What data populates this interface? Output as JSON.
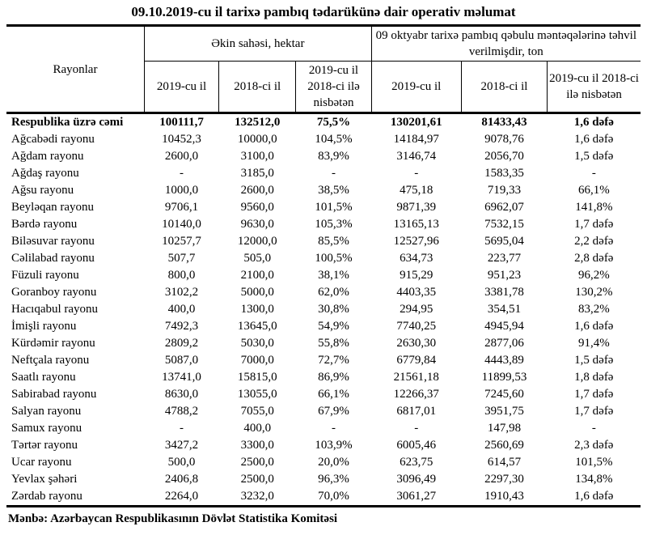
{
  "title": "09.10.2019-cu il tarixə pambıq tədarükünə dair operativ məlumat",
  "source": "Mənbə: Azərbaycan Respublikasının Dövlət Statistika Komitəsi",
  "table": {
    "row_header": "Rayonlar",
    "groups": [
      {
        "label": "Əkin sahəsi, hektar"
      },
      {
        "label": "09 oktyabr tarixə pambıq qəbulu məntəqələrinə təhvil verilmişdir, ton"
      }
    ],
    "subheaders": [
      "2019-cu il",
      "2018-ci il",
      "2019-cu il 2018-ci ilə nisbətən",
      "2019-cu il",
      "2018-ci il",
      "2019-cu il 2018-ci ilə nisbətən"
    ],
    "total_row": {
      "name": "Respublika üzrə cəmi",
      "values": [
        "100111,7",
        "132512,0",
        "75,5%",
        "130201,61",
        "81433,43",
        "1,6 dəfə"
      ]
    },
    "rows": [
      {
        "name": "Ağcabədi rayonu",
        "values": [
          "10452,3",
          "10000,0",
          "104,5%",
          "14184,97",
          "9078,76",
          "1,6 dəfə"
        ]
      },
      {
        "name": "Ağdam rayonu",
        "values": [
          "2600,0",
          "3100,0",
          "83,9%",
          "3146,74",
          "2056,70",
          "1,5 dəfə"
        ]
      },
      {
        "name": "Ağdaş rayonu",
        "values": [
          "-",
          "3185,0",
          "-",
          "-",
          "1583,35",
          "-"
        ]
      },
      {
        "name": "Ağsu rayonu",
        "values": [
          "1000,0",
          "2600,0",
          "38,5%",
          "475,18",
          "719,33",
          "66,1%"
        ]
      },
      {
        "name": "Beyləqan rayonu",
        "values": [
          "9706,1",
          "9560,0",
          "101,5%",
          "9871,39",
          "6962,07",
          "141,8%"
        ]
      },
      {
        "name": "Bərdə rayonu",
        "values": [
          "10140,0",
          "9630,0",
          "105,3%",
          "13165,13",
          "7532,15",
          "1,7 dəfə"
        ]
      },
      {
        "name": "Biləsuvar rayonu",
        "values": [
          "10257,7",
          "12000,0",
          "85,5%",
          "12527,96",
          "5695,04",
          "2,2 dəfə"
        ]
      },
      {
        "name": "Cəlilabad rayonu",
        "values": [
          "507,7",
          "505,0",
          "100,5%",
          "634,73",
          "223,77",
          "2,8 dəfə"
        ]
      },
      {
        "name": "Füzuli rayonu",
        "values": [
          "800,0",
          "2100,0",
          "38,1%",
          "915,29",
          "951,23",
          "96,2%"
        ]
      },
      {
        "name": "Goranboy rayonu",
        "values": [
          "3102,2",
          "5000,0",
          "62,0%",
          "4403,35",
          "3381,78",
          "130,2%"
        ]
      },
      {
        "name": "Hacıqabul rayonu",
        "values": [
          "400,0",
          "1300,0",
          "30,8%",
          "294,95",
          "354,51",
          "83,2%"
        ]
      },
      {
        "name": "İmişli rayonu",
        "values": [
          "7492,3",
          "13645,0",
          "54,9%",
          "7740,25",
          "4945,94",
          "1,6 dəfə"
        ]
      },
      {
        "name": "Kürdəmir rayonu",
        "values": [
          "2809,2",
          "5030,0",
          "55,8%",
          "2630,30",
          "2877,06",
          "91,4%"
        ]
      },
      {
        "name": "Neftçala rayonu",
        "values": [
          "5087,0",
          "7000,0",
          "72,7%",
          "6779,84",
          "4443,89",
          "1,5 dəfə"
        ]
      },
      {
        "name": "Saatlı rayonu",
        "values": [
          "13741,0",
          "15815,0",
          "86,9%",
          "21561,18",
          "11899,53",
          "1,8 dəfə"
        ]
      },
      {
        "name": "Sabirabad rayonu",
        "values": [
          "8630,0",
          "13055,0",
          "66,1%",
          "12266,37",
          "7245,60",
          "1,7 dəfə"
        ]
      },
      {
        "name": "Salyan rayonu",
        "values": [
          "4788,2",
          "7055,0",
          "67,9%",
          "6817,01",
          "3951,75",
          "1,7 dəfə"
        ]
      },
      {
        "name": "Samux rayonu",
        "values": [
          "-",
          "400,0",
          "-",
          "-",
          "147,98",
          "-"
        ]
      },
      {
        "name": "Tərtər rayonu",
        "values": [
          "3427,2",
          "3300,0",
          "103,9%",
          "6005,46",
          "2560,69",
          "2,3 dəfə"
        ]
      },
      {
        "name": "Ucar rayonu",
        "values": [
          "500,0",
          "2500,0",
          "20,0%",
          "623,75",
          "614,57",
          "101,5%"
        ]
      },
      {
        "name": "Yevlax şəhəri",
        "values": [
          "2406,8",
          "2500,0",
          "96,3%",
          "3096,49",
          "2297,30",
          "134,8%"
        ]
      },
      {
        "name": "Zərdab rayonu",
        "values": [
          "2264,0",
          "3232,0",
          "70,0%",
          "3061,27",
          "1910,43",
          "1,6 dəfə"
        ]
      }
    ]
  }
}
